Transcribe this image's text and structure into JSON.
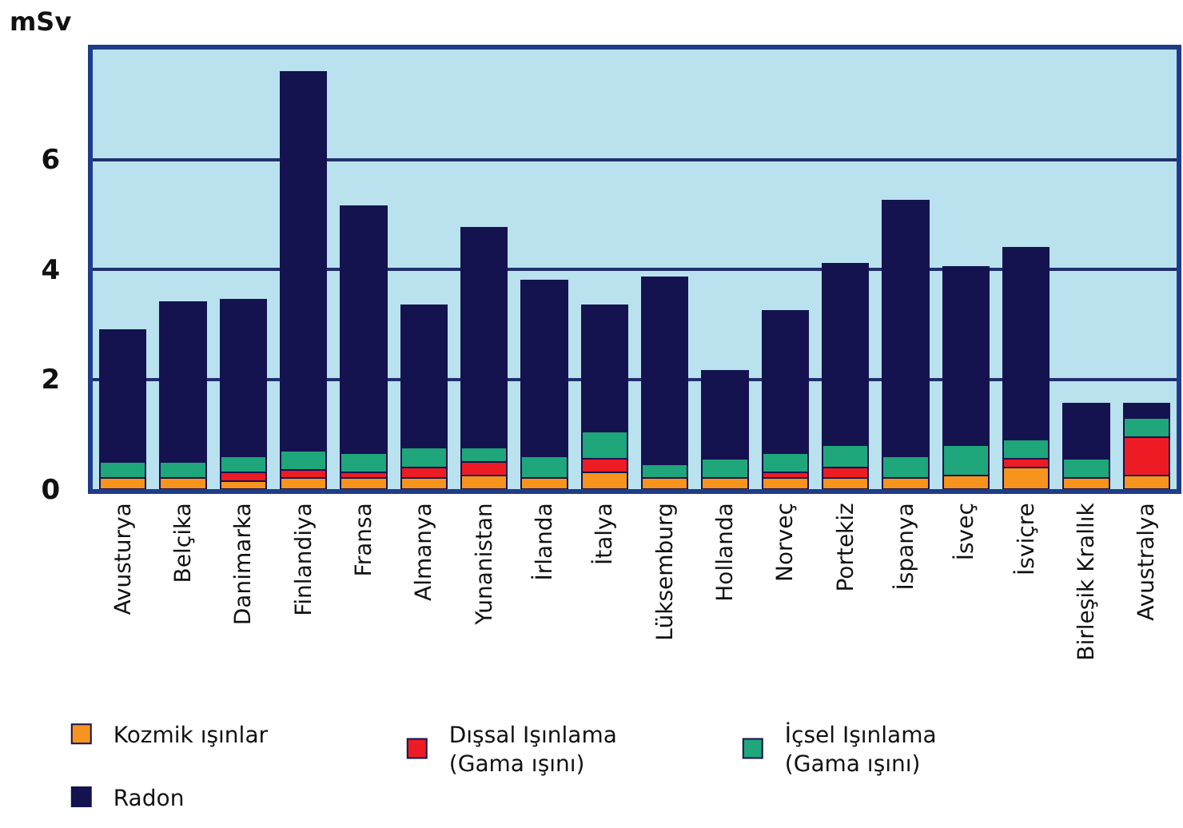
{
  "chart_data": {
    "type": "bar",
    "stacked": true,
    "ylabel": "mSv",
    "categories": [
      "Avusturya",
      "Belçika",
      "Danimarka",
      "Finlandiya",
      "Fransa",
      "Almanya",
      "Yunanistan",
      "İrlanda",
      "İtalya",
      "Lüksemburg",
      "Hollanda",
      "Norveç",
      "Portekiz",
      "İspanya",
      "İsveç",
      "İsviçre",
      "Birleşik Krallık",
      "Avustralya"
    ],
    "series": [
      {
        "name": "Kozmik ışınlar",
        "color": "#f7941d",
        "values": [
          0.2,
          0.2,
          0.15,
          0.2,
          0.2,
          0.2,
          0.25,
          0.2,
          0.3,
          0.2,
          0.2,
          0.2,
          0.2,
          0.2,
          0.25,
          0.4,
          0.2,
          0.25
        ]
      },
      {
        "name": "Dışsal Işınlama\n(Gama ışını)",
        "color": "#ed1c24",
        "values": [
          0,
          0,
          0.15,
          0.15,
          0.1,
          0.2,
          0.25,
          0,
          0.25,
          0,
          0,
          0.1,
          0.2,
          0,
          0,
          0.15,
          0,
          0.7
        ]
      },
      {
        "name": "İçsel Işınlama\n(Gama ışını)",
        "color": "#1fa67a",
        "values": [
          0.3,
          0.3,
          0.3,
          0.35,
          0.35,
          0.35,
          0.25,
          0.4,
          0.5,
          0.25,
          0.35,
          0.35,
          0.4,
          0.4,
          0.55,
          0.35,
          0.35,
          0.35
        ]
      },
      {
        "name": "Radon",
        "color": "#14134f",
        "values": [
          2.4,
          2.9,
          2.85,
          6.9,
          4.5,
          2.6,
          4.0,
          3.2,
          2.3,
          3.4,
          1.6,
          2.6,
          3.3,
          4.65,
          3.25,
          3.5,
          1.0,
          0.25
        ]
      }
    ],
    "ylim": [
      0,
      8
    ],
    "yticks": [
      0,
      2,
      4,
      6
    ],
    "grid": "y",
    "legend": "bottom"
  }
}
